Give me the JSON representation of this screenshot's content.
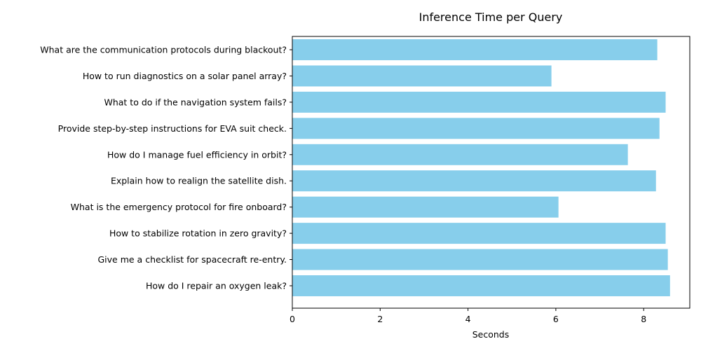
{
  "chart_data": {
    "type": "bar",
    "orientation": "horizontal",
    "title": "Inference Time per Query",
    "xlabel": "Seconds",
    "ylabel": "",
    "xlim": [
      0,
      9.05
    ],
    "xticks": [
      0,
      2,
      4,
      6,
      8
    ],
    "grid": false,
    "bar_color": "#87ceeb",
    "categories": [
      "What are the communication protocols during blackout?",
      "How to run diagnostics on a solar panel array?",
      "What to do if the navigation system fails?",
      "Provide step-by-step instructions for EVA suit check.",
      "How do I manage fuel efficiency in orbit?",
      "Explain how to realign the satellite dish.",
      "What is the emergency protocol for fire onboard?",
      "How to stabilize rotation in zero gravity?",
      "Give me a checklist for spacecraft re-entry.",
      "How do I repair an oxygen leak?"
    ],
    "values": [
      8.31,
      5.9,
      8.5,
      8.36,
      7.64,
      8.28,
      6.06,
      8.5,
      8.55,
      8.6
    ]
  }
}
